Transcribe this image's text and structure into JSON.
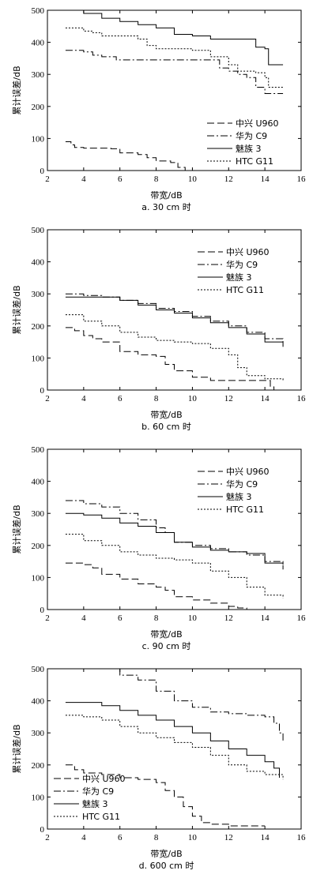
{
  "chart_data": [
    {
      "type": "line",
      "caption": "a. 30 cm 时",
      "xlabel": "带宽/dB",
      "ylabel": "累计误差/dB",
      "xlim": [
        2,
        16
      ],
      "ylim": [
        0,
        500
      ],
      "xticks": [
        2,
        4,
        6,
        8,
        10,
        12,
        14,
        16
      ],
      "yticks": [
        0,
        100,
        200,
        300,
        400,
        500
      ],
      "legend_position": "bottom-right",
      "series": [
        {
          "name": "中兴 U960",
          "style": "dashed",
          "x": [
            3.0,
            3.3,
            3.5,
            4.0,
            5.5,
            6.0,
            7.0,
            7.5,
            8.0,
            8.8,
            9.2,
            9.6
          ],
          "y": [
            90,
            80,
            72,
            70,
            68,
            55,
            50,
            40,
            30,
            25,
            10,
            0
          ]
        },
        {
          "name": "华为 C9",
          "style": "dashdot",
          "x": [
            3.0,
            4.0,
            4.5,
            5.0,
            5.8,
            6.5,
            7.0,
            8.0,
            9.0,
            10.0,
            11.0,
            11.5,
            12.0,
            12.5,
            13.0,
            13.5,
            14.0,
            14.5,
            15.0
          ],
          "y": [
            375,
            370,
            360,
            355,
            345,
            345,
            345,
            345,
            345,
            345,
            345,
            320,
            310,
            300,
            290,
            260,
            240,
            240,
            240
          ]
        },
        {
          "name": "魅族 3",
          "style": "solid",
          "x": [
            3.0,
            3.5,
            4.0,
            5.0,
            6.0,
            7.0,
            8.0,
            9.0,
            10.0,
            11.0,
            12.0,
            13.0,
            13.5,
            14.0,
            14.2,
            14.5,
            15.0
          ],
          "y": [
            500,
            500,
            490,
            475,
            465,
            455,
            445,
            425,
            420,
            410,
            410,
            410,
            385,
            380,
            330,
            330,
            330
          ]
        },
        {
          "name": "HTC G11",
          "style": "dotted",
          "x": [
            3.0,
            4.0,
            4.5,
            5.0,
            6.0,
            7.0,
            7.5,
            8.0,
            9.0,
            10.0,
            11.0,
            12.0,
            12.5,
            13.0,
            13.5,
            14.0,
            14.2,
            15.0
          ],
          "y": [
            445,
            435,
            430,
            420,
            420,
            410,
            390,
            380,
            380,
            375,
            355,
            330,
            310,
            310,
            305,
            290,
            260,
            260
          ]
        }
      ]
    },
    {
      "type": "line",
      "caption": "b. 60 cm 时",
      "xlabel": "带宽/dB",
      "ylabel": "累计误差/dB",
      "xlim": [
        2,
        16
      ],
      "ylim": [
        0,
        500
      ],
      "xticks": [
        2,
        4,
        6,
        8,
        10,
        12,
        14,
        16
      ],
      "yticks": [
        0,
        100,
        200,
        300,
        400,
        500
      ],
      "legend_position": "top-right",
      "series": [
        {
          "name": "中兴 U960",
          "style": "dashed",
          "x": [
            3.0,
            3.5,
            4.0,
            4.5,
            5.0,
            6.0,
            7.0,
            8.0,
            8.5,
            9.0,
            10.0,
            11.0,
            12.0,
            13.0,
            14.0,
            14.3,
            14.5
          ],
          "y": [
            195,
            185,
            170,
            160,
            150,
            120,
            110,
            105,
            80,
            60,
            40,
            30,
            30,
            30,
            30,
            10,
            0
          ]
        },
        {
          "name": "华为 C9",
          "style": "dashdot",
          "x": [
            3.0,
            4.0,
            5.0,
            6.0,
            7.0,
            8.0,
            9.0,
            10.0,
            11.0,
            12.0,
            13.0,
            14.0,
            15.0
          ],
          "y": [
            300,
            295,
            290,
            280,
            270,
            255,
            245,
            230,
            215,
            200,
            180,
            160,
            140
          ]
        },
        {
          "name": "魅族 3",
          "style": "solid",
          "x": [
            3.0,
            4.0,
            5.0,
            6.0,
            7.0,
            8.0,
            9.0,
            10.0,
            11.0,
            12.0,
            13.0,
            14.0,
            15.0
          ],
          "y": [
            290,
            290,
            290,
            280,
            265,
            250,
            240,
            225,
            210,
            195,
            175,
            150,
            135
          ]
        },
        {
          "name": "HTC G11",
          "style": "dotted",
          "x": [
            3.0,
            4.0,
            5.0,
            6.0,
            7.0,
            8.0,
            9.0,
            10.0,
            11.0,
            12.0,
            12.5,
            13.0,
            14.0,
            15.0
          ],
          "y": [
            235,
            215,
            200,
            180,
            165,
            155,
            150,
            145,
            130,
            110,
            70,
            45,
            35,
            30
          ]
        }
      ]
    },
    {
      "type": "line",
      "caption": "c. 90 cm 时",
      "xlabel": "带宽/dB",
      "ylabel": "累计误差/dB",
      "xlim": [
        2,
        16
      ],
      "ylim": [
        0,
        500
      ],
      "xticks": [
        2,
        4,
        6,
        8,
        10,
        12,
        14,
        16
      ],
      "yticks": [
        0,
        100,
        200,
        300,
        400,
        500
      ],
      "legend_position": "top-right",
      "series": [
        {
          "name": "中兴 U960",
          "style": "dashed",
          "x": [
            3.0,
            4.0,
            4.5,
            5.0,
            6.0,
            7.0,
            8.0,
            8.5,
            9.0,
            10.0,
            11.0,
            12.0,
            12.5,
            13.0
          ],
          "y": [
            145,
            140,
            130,
            110,
            95,
            80,
            70,
            60,
            40,
            30,
            20,
            10,
            5,
            0
          ]
        },
        {
          "name": "华为 C9",
          "style": "dashdot",
          "x": [
            3.0,
            4.0,
            5.0,
            6.0,
            7.0,
            8.0,
            8.5,
            9.0,
            10.0,
            11.0,
            12.0,
            13.0,
            14.0,
            15.0
          ],
          "y": [
            340,
            330,
            320,
            300,
            280,
            255,
            240,
            210,
            200,
            190,
            180,
            170,
            150,
            125
          ]
        },
        {
          "name": "魅族 3",
          "style": "solid",
          "x": [
            3.0,
            4.0,
            5.0,
            6.0,
            7.0,
            8.0,
            9.0,
            10.0,
            11.0,
            12.0,
            13.0,
            14.0,
            15.0
          ],
          "y": [
            300,
            295,
            285,
            270,
            260,
            240,
            210,
            195,
            185,
            180,
            175,
            145,
            140
          ]
        },
        {
          "name": "HTC G11",
          "style": "dotted",
          "x": [
            3.0,
            4.0,
            5.0,
            6.0,
            7.0,
            8.0,
            9.0,
            10.0,
            11.0,
            12.0,
            13.0,
            14.0,
            15.0
          ],
          "y": [
            235,
            215,
            200,
            180,
            170,
            160,
            155,
            145,
            120,
            100,
            70,
            45,
            35
          ]
        }
      ]
    },
    {
      "type": "line",
      "caption": "d. 600 cm 时",
      "xlabel": "带宽/dB",
      "ylabel": "累计误差/dB",
      "xlim": [
        2,
        16
      ],
      "ylim": [
        0,
        500
      ],
      "xticks": [
        2,
        4,
        6,
        8,
        10,
        12,
        14,
        16
      ],
      "yticks": [
        0,
        100,
        200,
        300,
        400,
        500
      ],
      "legend_position": "bottom-left",
      "series": [
        {
          "name": "中兴 U960",
          "style": "dashed",
          "x": [
            3.0,
            3.5,
            4.0,
            5.0,
            6.0,
            7.0,
            8.0,
            8.5,
            9.0,
            9.5,
            10.0,
            10.5,
            11.0,
            12.0,
            13.0,
            14.0
          ],
          "y": [
            200,
            185,
            175,
            170,
            160,
            155,
            145,
            120,
            100,
            70,
            40,
            20,
            15,
            10,
            10,
            10
          ]
        },
        {
          "name": "华为 C9",
          "style": "dashdot",
          "x": [
            3.0,
            4.0,
            5.0,
            6.0,
            7.0,
            8.0,
            9.0,
            10.0,
            11.0,
            12.0,
            13.0,
            14.0,
            14.5,
            14.8,
            15.0
          ],
          "y": [
            500,
            500,
            500,
            480,
            465,
            430,
            400,
            380,
            365,
            360,
            355,
            350,
            330,
            300,
            270
          ]
        },
        {
          "name": "魅族 3",
          "style": "solid",
          "x": [
            3.0,
            4.0,
            5.0,
            6.0,
            7.0,
            8.0,
            9.0,
            10.0,
            11.0,
            12.0,
            13.0,
            14.0,
            14.5,
            14.8
          ],
          "y": [
            395,
            395,
            385,
            370,
            355,
            340,
            320,
            300,
            275,
            250,
            230,
            210,
            190,
            160
          ]
        },
        {
          "name": "HTC G11",
          "style": "dotted",
          "x": [
            3.0,
            4.0,
            5.0,
            6.0,
            7.0,
            8.0,
            9.0,
            10.0,
            11.0,
            12.0,
            13.0,
            14.0,
            15.0
          ],
          "y": [
            355,
            350,
            340,
            320,
            300,
            285,
            270,
            255,
            230,
            200,
            180,
            170,
            155
          ]
        }
      ]
    }
  ]
}
